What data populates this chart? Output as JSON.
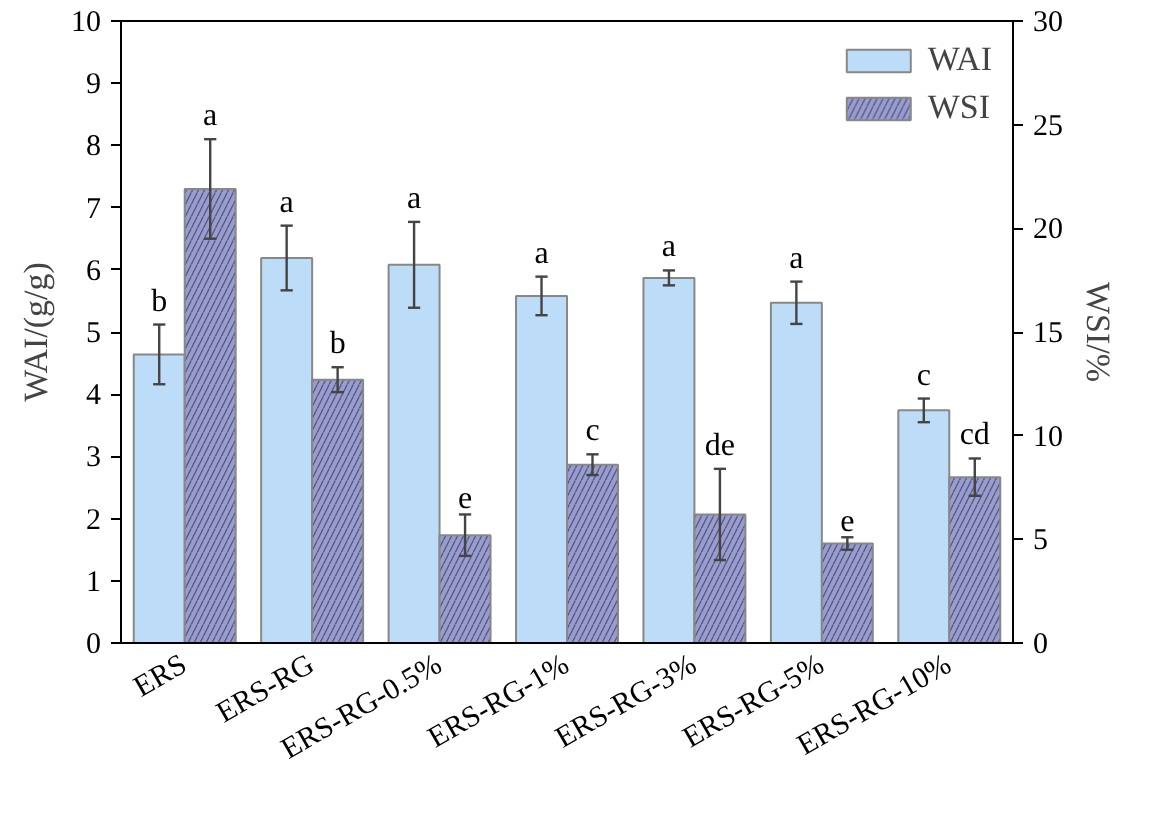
{
  "chart_data": {
    "type": "bar",
    "xlabel": null,
    "ylabel": "WAI/(g/g)",
    "y2label": "WSI/%",
    "categories": [
      "ERS",
      "ERS-RG",
      "ERS-RG-0.5%",
      "ERS-RG-1%",
      "ERS-RG-3%",
      "ERS-RG-5%",
      "ERS-RG-10%"
    ],
    "series": [
      {
        "name": "WAI",
        "color": "#bddcf7",
        "values": [
          4.64,
          6.19,
          6.08,
          5.58,
          5.87,
          5.47,
          3.74
        ],
        "errors": [
          0.48,
          0.52,
          0.69,
          0.31,
          0.12,
          0.34,
          0.19
        ]
      },
      {
        "name": "WSI",
        "color": "#9a9ccc",
        "axis": "y2",
        "values": [
          21.9,
          12.7,
          5.2,
          8.6,
          6.2,
          4.8,
          8.0
        ],
        "errors": [
          2.4,
          0.6,
          1.0,
          0.5,
          2.2,
          0.3,
          0.9
        ]
      }
    ],
    "ylim": [
      0,
      10
    ],
    "yticks": [
      0,
      1,
      2,
      3,
      4,
      5,
      6,
      7,
      8,
      9,
      10
    ],
    "y2lim": [
      0,
      30
    ],
    "y2ticks": [
      0,
      5,
      10,
      15,
      20,
      25,
      30
    ],
    "legend": "top right",
    "grid": false,
    "annotations": [
      "b",
      "a",
      "a",
      "a",
      "a",
      "a",
      "c",
      "a",
      "b",
      "e",
      "c",
      "de",
      "e",
      "cd"
    ]
  }
}
